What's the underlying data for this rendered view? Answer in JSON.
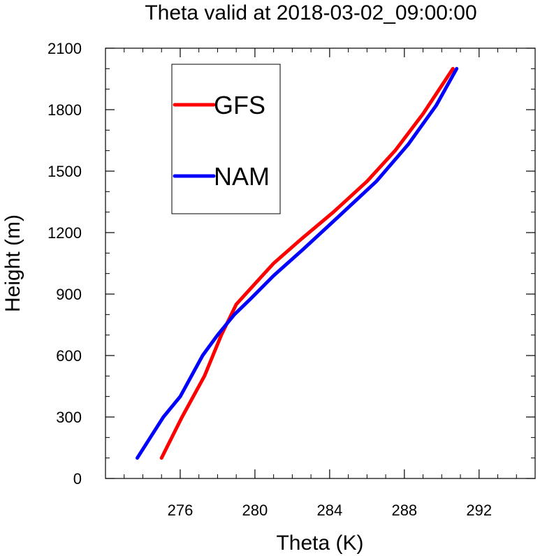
{
  "chart_data": {
    "type": "line",
    "title": "Theta valid at 2018-03-02_09:00:00",
    "xlabel": "Theta (K)",
    "ylabel": "Height (m)",
    "xlim": [
      272,
      295
    ],
    "ylim": [
      0,
      2100
    ],
    "xticks": [
      276,
      280,
      284,
      288,
      292
    ],
    "xtick_labels": [
      "276",
      "280",
      "284",
      "288",
      "292"
    ],
    "yticks": [
      0,
      300,
      600,
      900,
      1200,
      1500,
      1800,
      2100
    ],
    "ytick_labels": [
      "0",
      "300",
      "600",
      "900",
      "1200",
      "1500",
      "1800",
      "2100"
    ],
    "x_minor_step": 1,
    "y_minor_step": 100,
    "grid": false,
    "legend_position": "top-left",
    "series": [
      {
        "name": "GFS",
        "color": "#ff0000",
        "x": [
          275.0,
          276.1,
          277.3,
          278.2,
          279.0,
          280.0,
          281.0,
          282.5,
          284.2,
          286.0,
          287.5,
          289.0,
          290.6
        ],
        "y": [
          100,
          300,
          500,
          700,
          850,
          950,
          1050,
          1170,
          1300,
          1450,
          1600,
          1780,
          2000
        ]
      },
      {
        "name": "NAM",
        "color": "#0000ff",
        "x": [
          273.7,
          274.4,
          275.1,
          276.0,
          276.6,
          277.2,
          278.0,
          278.9,
          279.8,
          281.0,
          282.6,
          284.5,
          286.5,
          288.2,
          289.7,
          290.8
        ],
        "y": [
          100,
          200,
          300,
          400,
          500,
          600,
          700,
          800,
          880,
          990,
          1120,
          1280,
          1450,
          1630,
          1820,
          2000
        ]
      }
    ]
  }
}
